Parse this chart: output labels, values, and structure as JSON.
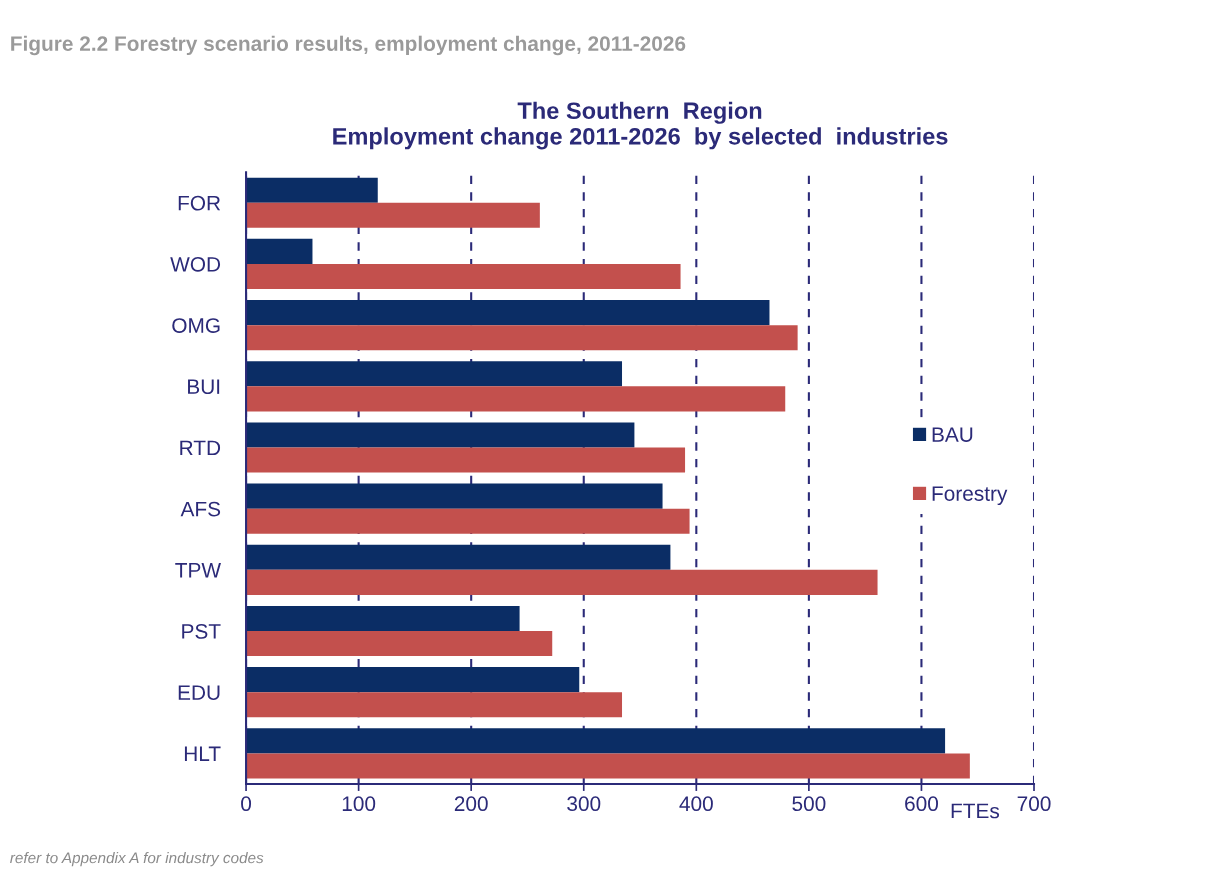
{
  "chart_data": {
    "type": "bar",
    "orientation": "horizontal",
    "title": "The Southern  Region\nEmployment change 2011-2026  by selected  industries",
    "annotations": [
      "Figure 2.2 Forestry scenario results, employment change, 2011-2026",
      "refer to Appendix A for industry codes"
    ],
    "xlabel": "FTEs",
    "categories": [
      "FOR",
      "WOD",
      "OMG",
      "BUI",
      "RTD",
      "AFS",
      "TPW",
      "PST",
      "EDU",
      "HLT"
    ],
    "series": [
      {
        "name": "BAU",
        "color": "#0b2d65",
        "values": [
          117,
          59,
          465,
          334,
          345,
          370,
          377,
          243,
          296,
          621
        ]
      },
      {
        "name": "Forestry",
        "color": "#c3504d",
        "values": [
          261,
          386,
          490,
          479,
          390,
          394,
          561,
          272,
          334,
          643
        ]
      }
    ],
    "xlim": [
      0,
      700
    ],
    "xticks": [
      0,
      100,
      200,
      300,
      400,
      500,
      600,
      700
    ],
    "grid": "x",
    "legend": "right"
  }
}
